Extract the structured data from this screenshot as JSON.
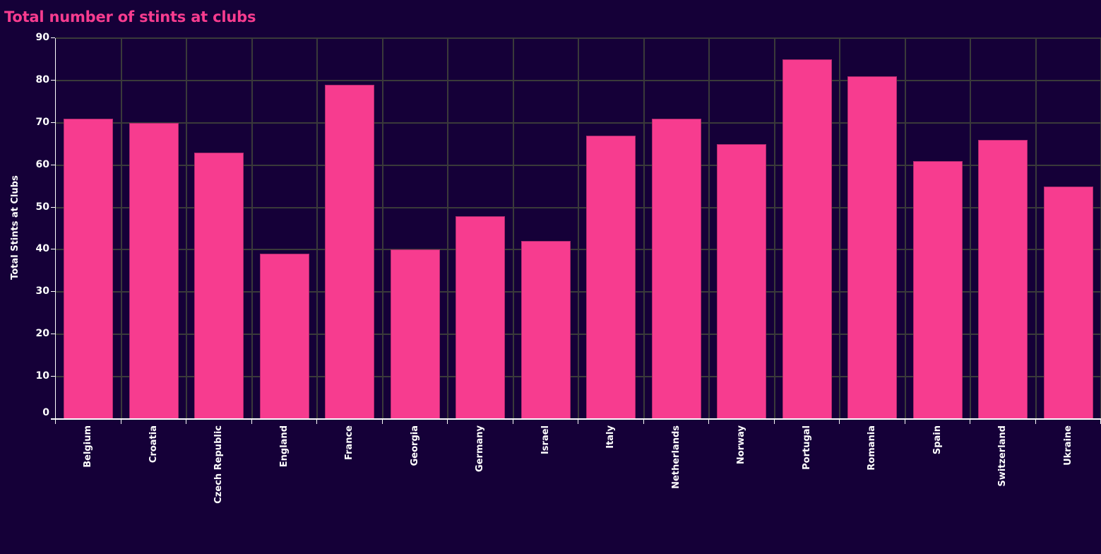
{
  "title": "Total number of stints at clubs",
  "colors": {
    "background": "#150038",
    "bar": "#f73c8f",
    "title": "#f73c8f",
    "grid": "#3a3a3a",
    "axis_text": "#ffffff"
  },
  "chart_data": {
    "type": "bar",
    "title": "Total number of stints at clubs",
    "xlabel": "",
    "ylabel": "Total Stints at Clubs",
    "ylim": [
      0,
      90
    ],
    "yticks": [
      0,
      10,
      20,
      30,
      40,
      50,
      60,
      70,
      80,
      90
    ],
    "grid": true,
    "legend": null,
    "categories": [
      "Belgium",
      "Croatia",
      "Czech Republic",
      "England",
      "France",
      "Georgia",
      "Germany",
      "Israel",
      "Italy",
      "Netherlands",
      "Norway",
      "Portugal",
      "Romania",
      "Spain",
      "Switzerland",
      "Ukraine"
    ],
    "values": [
      71,
      70,
      63,
      39,
      79,
      40,
      48,
      42,
      67,
      71,
      65,
      85,
      81,
      61,
      66,
      55
    ]
  }
}
